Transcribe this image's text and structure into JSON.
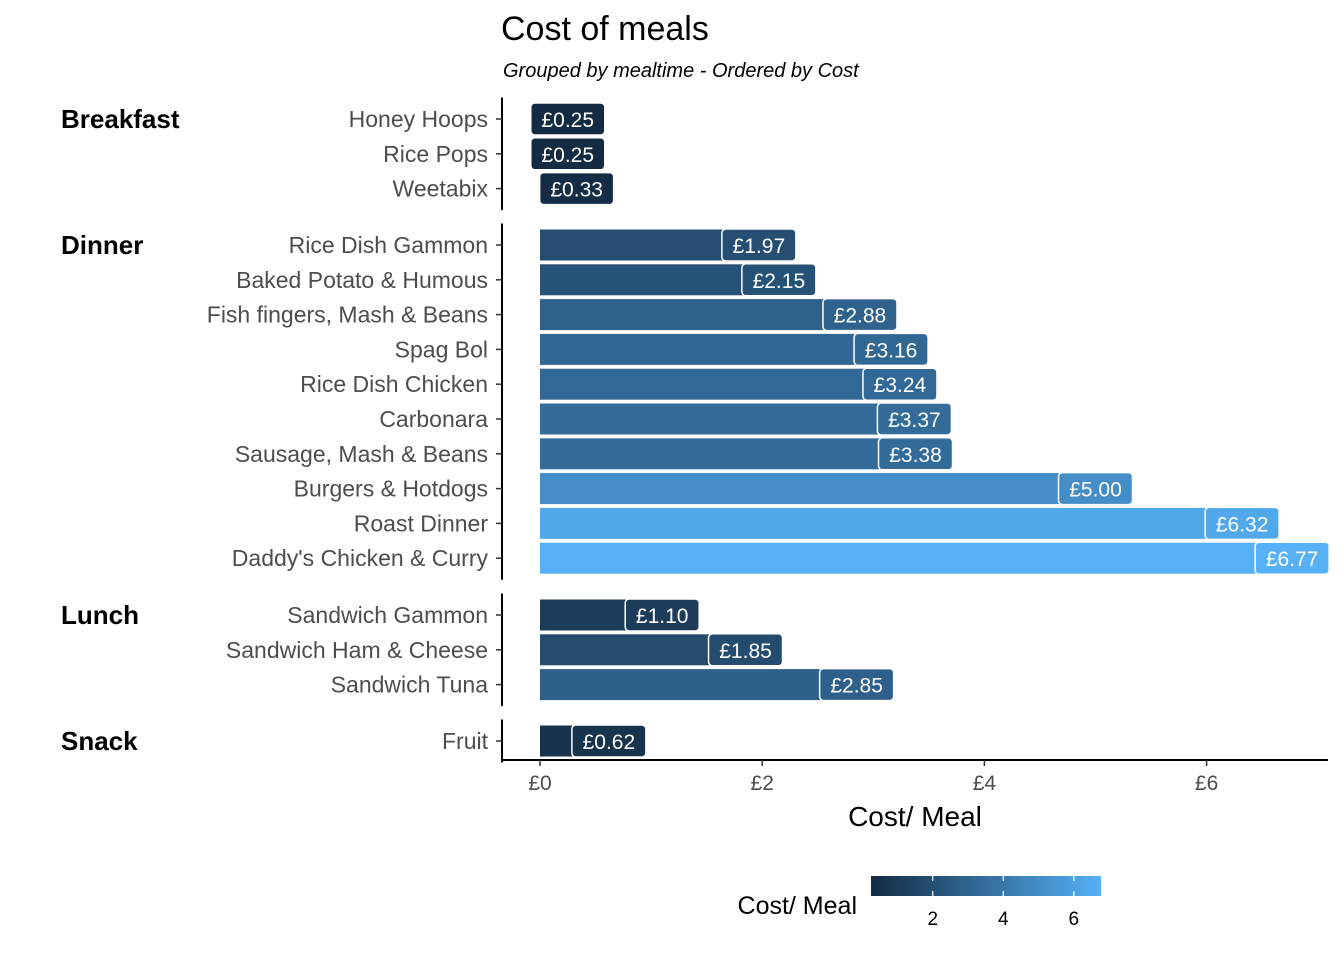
{
  "chart_data": {
    "type": "bar",
    "orientation": "horizontal",
    "title": "Cost of meals",
    "subtitle": "Grouped by mealtime - Ordered by Cost",
    "xlabel": "Cost/ Meal",
    "xlim": [
      -0.5,
      7.1
    ],
    "x_ticks": [
      {
        "value": 0,
        "label": "£0"
      },
      {
        "value": 2,
        "label": "£2"
      },
      {
        "value": 4,
        "label": "£4"
      },
      {
        "value": 6,
        "label": "£6"
      }
    ],
    "grid": false,
    "legend": {
      "title": "Cost/ Meal",
      "placement": "bottom",
      "type": "colorbar",
      "range": [
        0.25,
        6.77
      ],
      "ticks": [
        2,
        4,
        6
      ],
      "color_low": "#132B43",
      "color_high": "#56B1F7"
    },
    "groups": [
      {
        "name": "Breakfast",
        "items": [
          {
            "name": "Honey Hoops",
            "value": 0.25,
            "label": "£0.25"
          },
          {
            "name": "Rice Pops",
            "value": 0.25,
            "label": "£0.25"
          },
          {
            "name": "Weetabix",
            "value": 0.33,
            "label": "£0.33"
          }
        ]
      },
      {
        "name": "Dinner",
        "items": [
          {
            "name": "Rice Dish Gammon",
            "value": 1.97,
            "label": "£1.97"
          },
          {
            "name": "Baked Potato & Humous",
            "value": 2.15,
            "label": "£2.15"
          },
          {
            "name": "Fish fingers, Mash & Beans",
            "value": 2.88,
            "label": "£2.88"
          },
          {
            "name": "Spag Bol",
            "value": 3.16,
            "label": "£3.16"
          },
          {
            "name": "Rice Dish Chicken",
            "value": 3.24,
            "label": "£3.24"
          },
          {
            "name": "Carbonara",
            "value": 3.37,
            "label": "£3.37"
          },
          {
            "name": "Sausage, Mash & Beans",
            "value": 3.38,
            "label": "£3.38"
          },
          {
            "name": "Burgers & Hotdogs",
            "value": 5.0,
            "label": "£5.00"
          },
          {
            "name": "Roast Dinner",
            "value": 6.32,
            "label": "£6.32"
          },
          {
            "name": "Daddy's Chicken & Curry",
            "value": 6.77,
            "label": "£6.77"
          }
        ]
      },
      {
        "name": "Lunch",
        "items": [
          {
            "name": "Sandwich Gammon",
            "value": 1.1,
            "label": "£1.10"
          },
          {
            "name": "Sandwich Ham & Cheese",
            "value": 1.85,
            "label": "£1.85"
          },
          {
            "name": "Sandwich Tuna",
            "value": 2.85,
            "label": "£2.85"
          }
        ]
      },
      {
        "name": "Snack",
        "items": [
          {
            "name": "Fruit",
            "value": 0.62,
            "label": "£0.62"
          }
        ]
      }
    ]
  }
}
